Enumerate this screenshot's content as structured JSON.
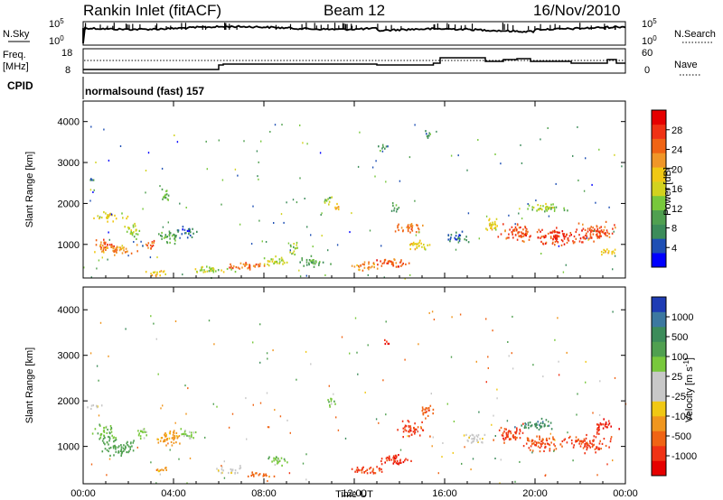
{
  "header": {
    "station": "Rankin Inlet (fitACF)",
    "beam": "Beam 12",
    "date": "16/Nov/2010"
  },
  "cpid_text": "normalsound (fast) 157",
  "labels": {
    "nsky": "N.Sky",
    "nsearch": "N.Search",
    "freq_line1": "Freq.",
    "freq_line2": "[MHz]",
    "nave": "Nave",
    "cpid": "CPID",
    "xlabel": "Time UT",
    "ylabel": "Slant Range [km]"
  },
  "noise_panel": {
    "left_ticks": [
      "10^5",
      "10^0"
    ],
    "right_ticks": [
      "10^5",
      "10^0"
    ]
  },
  "freq_panel": {
    "left_ticks": [
      "18",
      "8"
    ],
    "right_ticks": [
      "60",
      "0"
    ]
  },
  "chart_data": [
    {
      "type": "heatmap",
      "name": "power",
      "xlabel": "Time UT",
      "ylabel": "Slant Range [km]",
      "x_ticks": [
        "00:00",
        "04:00",
        "08:00",
        "12:00",
        "16:00",
        "20:00",
        "00:00"
      ],
      "x_range_hours": [
        0,
        24
      ],
      "y_ticks": [
        1000,
        2000,
        3000,
        4000
      ],
      "y_range_km": [
        180,
        4500
      ],
      "colorbar": {
        "label": "Power [dB]",
        "ticks": [
          "4",
          "8",
          "12",
          "16",
          "20",
          "24",
          "28"
        ],
        "colors": [
          "#0000ff",
          "#1e4fb4",
          "#3c8c5a",
          "#50a050",
          "#78c83c",
          "#d2d21e",
          "#f0c814",
          "#f09628",
          "#f06414",
          "#f03214",
          "#e60000"
        ]
      },
      "blobs": [
        {
          "t": 0.9,
          "r": 1000,
          "dt": 0.6,
          "dr": 220,
          "val": 26
        },
        {
          "t": 1.3,
          "r": 1700,
          "dt": 1.0,
          "dr": 160,
          "val": 18
        },
        {
          "t": 1.5,
          "r": 900,
          "dt": 1.4,
          "dr": 200,
          "val": 22
        },
        {
          "t": 2.2,
          "r": 1350,
          "dt": 0.6,
          "dr": 250,
          "val": 14
        },
        {
          "t": 0.4,
          "r": 2600,
          "dt": 0.3,
          "dr": 90,
          "val": 8
        },
        {
          "t": 3.0,
          "r": 1000,
          "dt": 0.4,
          "dr": 200,
          "val": 24
        },
        {
          "t": 3.9,
          "r": 1200,
          "dt": 0.8,
          "dr": 250,
          "val": 10
        },
        {
          "t": 4.7,
          "r": 1300,
          "dt": 0.7,
          "dr": 200,
          "val": 6
        },
        {
          "t": 3.6,
          "r": 2200,
          "dt": 0.3,
          "dr": 300,
          "val": 12
        },
        {
          "t": 3.2,
          "r": 300,
          "dt": 0.8,
          "dr": 120,
          "val": 18
        },
        {
          "t": 5.5,
          "r": 400,
          "dt": 1.6,
          "dr": 120,
          "val": 14
        },
        {
          "t": 7.2,
          "r": 500,
          "dt": 1.4,
          "dr": 150,
          "val": 24
        },
        {
          "t": 8.5,
          "r": 600,
          "dt": 0.9,
          "dr": 200,
          "val": 16
        },
        {
          "t": 9.3,
          "r": 900,
          "dt": 0.3,
          "dr": 250,
          "val": 14
        },
        {
          "t": 10.8,
          "r": 2100,
          "dt": 0.3,
          "dr": 200,
          "val": 14
        },
        {
          "t": 11.2,
          "r": 1900,
          "dt": 0.25,
          "dr": 180,
          "val": 20
        },
        {
          "t": 10.2,
          "r": 600,
          "dt": 1.0,
          "dr": 180,
          "val": 10
        },
        {
          "t": 12.4,
          "r": 500,
          "dt": 1.0,
          "dr": 150,
          "val": 22
        },
        {
          "t": 13.5,
          "r": 600,
          "dt": 1.2,
          "dr": 200,
          "val": 26
        },
        {
          "t": 14.4,
          "r": 1400,
          "dt": 0.8,
          "dr": 250,
          "val": 24
        },
        {
          "t": 14.8,
          "r": 1000,
          "dt": 0.8,
          "dr": 200,
          "val": 18
        },
        {
          "t": 13.8,
          "r": 1900,
          "dt": 0.3,
          "dr": 200,
          "val": 10
        },
        {
          "t": 13.3,
          "r": 3400,
          "dt": 0.4,
          "dr": 120,
          "val": 8
        },
        {
          "t": 15.2,
          "r": 3700,
          "dt": 0.2,
          "dr": 200,
          "val": 8
        },
        {
          "t": 16.5,
          "r": 1200,
          "dt": 0.8,
          "dr": 200,
          "val": 6
        },
        {
          "t": 18.1,
          "r": 1500,
          "dt": 0.5,
          "dr": 300,
          "val": 18
        },
        {
          "t": 19.3,
          "r": 1300,
          "dt": 1.4,
          "dr": 300,
          "val": 26
        },
        {
          "t": 21.2,
          "r": 1200,
          "dt": 1.8,
          "dr": 300,
          "val": 28
        },
        {
          "t": 22.7,
          "r": 1300,
          "dt": 1.2,
          "dr": 350,
          "val": 26
        },
        {
          "t": 20.5,
          "r": 1900,
          "dt": 1.6,
          "dr": 150,
          "val": 14
        },
        {
          "t": 23.2,
          "r": 800,
          "dt": 0.6,
          "dr": 150,
          "val": 20
        }
      ]
    },
    {
      "type": "heatmap",
      "name": "velocity",
      "xlabel": "Time UT",
      "ylabel": "Slant Range [km]",
      "x_ticks": [
        "00:00",
        "04:00",
        "08:00",
        "12:00",
        "16:00",
        "20:00",
        "00:00"
      ],
      "x_range_hours": [
        0,
        24
      ],
      "y_ticks": [
        1000,
        2000,
        3000,
        4000
      ],
      "y_range_km": [
        180,
        4500
      ],
      "colorbar": {
        "label": "Velocity [m s^-1]",
        "ticks": [
          "1000",
          "500",
          "100",
          "25",
          "-25",
          "-100",
          "-500",
          "-1000"
        ],
        "colors": [
          "#1e3cb4",
          "#3c78a0",
          "#3c8c5a",
          "#50a050",
          "#78c83c",
          "#c8c8c8",
          "#c8c8c8",
          "#f0c814",
          "#f0961e",
          "#f06414",
          "#f03214",
          "#e60000"
        ]
      },
      "blobs": [
        {
          "t": 0.9,
          "r": 1300,
          "dt": 0.7,
          "dr": 350,
          "val": 100
        },
        {
          "t": 1.6,
          "r": 1000,
          "dt": 1.2,
          "dr": 300,
          "val": 150
        },
        {
          "t": 0.5,
          "r": 1900,
          "dt": 0.6,
          "dr": 80,
          "val": 0
        },
        {
          "t": 2.6,
          "r": 1300,
          "dt": 0.4,
          "dr": 250,
          "val": 60
        },
        {
          "t": 3.8,
          "r": 1200,
          "dt": 0.9,
          "dr": 300,
          "val": -60
        },
        {
          "t": 4.6,
          "r": 1300,
          "dt": 0.6,
          "dr": 200,
          "val": 50
        },
        {
          "t": 3.4,
          "r": 500,
          "dt": 0.5,
          "dr": 120,
          "val": -80
        },
        {
          "t": 6.5,
          "r": 500,
          "dt": 1.2,
          "dr": 120,
          "val": 0
        },
        {
          "t": 8.6,
          "r": 700,
          "dt": 0.8,
          "dr": 180,
          "val": 80
        },
        {
          "t": 7.8,
          "r": 400,
          "dt": 1.0,
          "dr": 100,
          "val": -150
        },
        {
          "t": 11.0,
          "r": 2000,
          "dt": 0.3,
          "dr": 200,
          "val": 80
        },
        {
          "t": 12.6,
          "r": 500,
          "dt": 1.2,
          "dr": 160,
          "val": -300
        },
        {
          "t": 13.8,
          "r": 700,
          "dt": 1.2,
          "dr": 220,
          "val": -400
        },
        {
          "t": 14.6,
          "r": 1400,
          "dt": 0.9,
          "dr": 280,
          "val": -350
        },
        {
          "t": 15.2,
          "r": 1800,
          "dt": 0.5,
          "dr": 250,
          "val": -200
        },
        {
          "t": 13.4,
          "r": 3300,
          "dt": 0.3,
          "dr": 100,
          "val": -700
        },
        {
          "t": 17.2,
          "r": 1200,
          "dt": 0.8,
          "dr": 200,
          "val": 0
        },
        {
          "t": 18.8,
          "r": 1300,
          "dt": 1.0,
          "dr": 300,
          "val": -300
        },
        {
          "t": 20.3,
          "r": 1100,
          "dt": 1.4,
          "dr": 300,
          "val": -250
        },
        {
          "t": 22.3,
          "r": 1100,
          "dt": 1.6,
          "dr": 300,
          "val": -300
        },
        {
          "t": 20.0,
          "r": 1500,
          "dt": 1.2,
          "dr": 200,
          "val": 400
        },
        {
          "t": 23.0,
          "r": 1500,
          "dt": 0.8,
          "dr": 200,
          "val": -500
        }
      ]
    }
  ]
}
